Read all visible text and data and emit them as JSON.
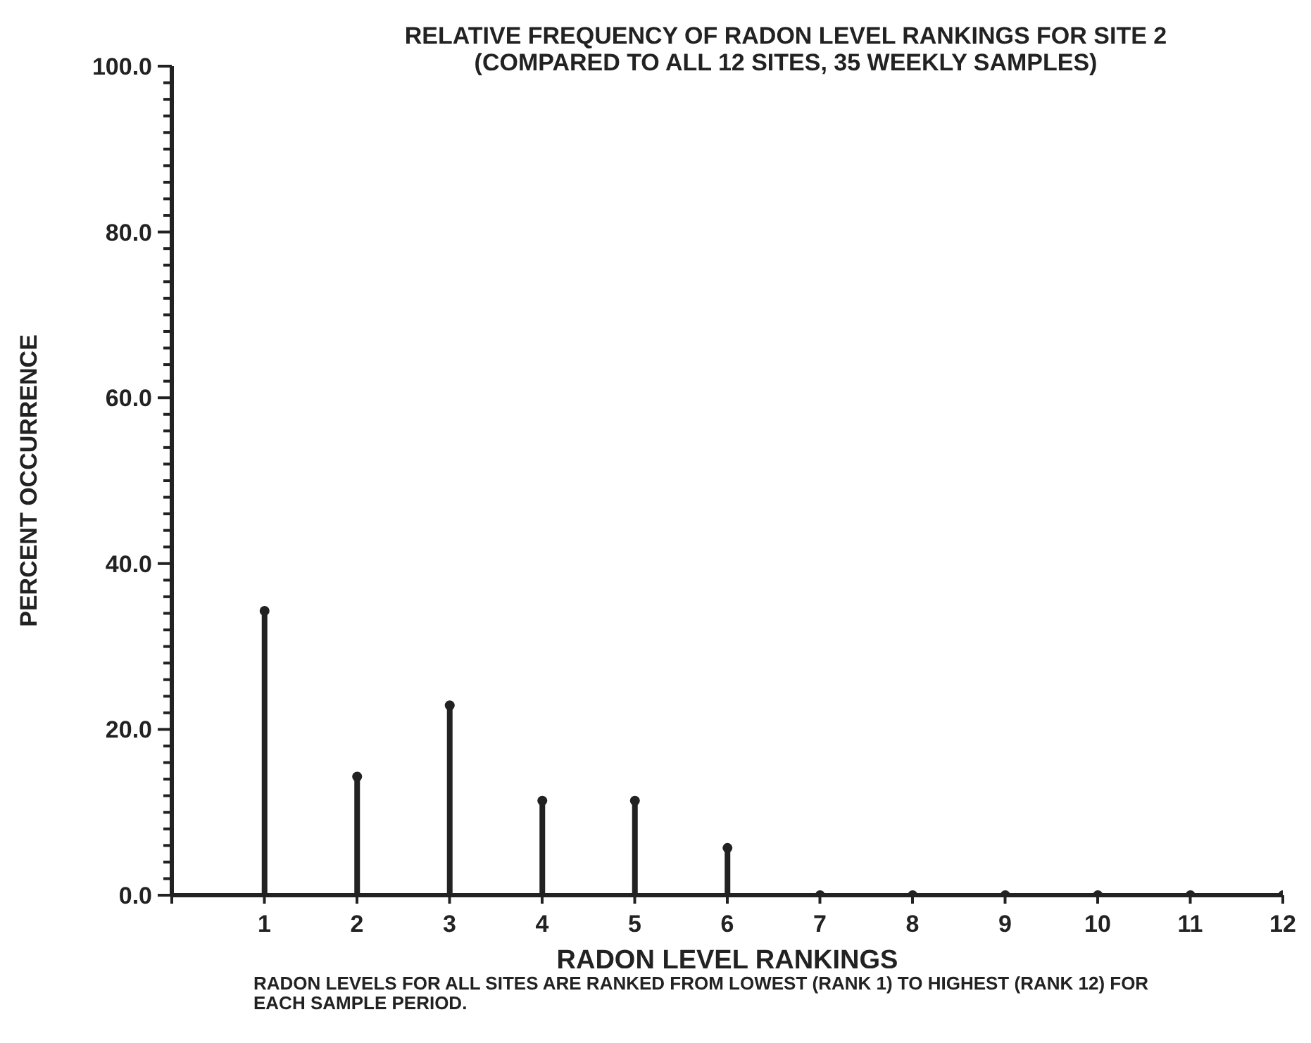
{
  "chart_data": {
    "type": "lollipop",
    "title": "RELATIVE FREQUENCY OF RADON LEVEL RANKINGS FOR SITE 2",
    "subtitle": "(COMPARED TO ALL 12 SITES, 35 WEEKLY SAMPLES)",
    "xlabel": "RADON LEVEL RANKINGS",
    "ylabel": "PERCENT OCCURRENCE",
    "annotations": [
      "RADON LEVELS FOR ALL SITES ARE RANKED FROM LOWEST (RANK 1) TO HIGHEST (RANK 12) FOR EACH SAMPLE PERIOD."
    ],
    "x": [
      1,
      2,
      3,
      4,
      5,
      6,
      7,
      8,
      9,
      10,
      11,
      12
    ],
    "values": [
      34.3,
      14.3,
      22.9,
      11.4,
      11.4,
      5.7,
      0,
      0,
      0,
      0,
      0,
      0
    ],
    "color": "#222222",
    "marker": "circle",
    "grid": false,
    "xlim": [
      0,
      12
    ],
    "xticks": [
      {
        "value": 0,
        "label": null
      },
      1,
      2,
      3,
      4,
      5,
      6,
      7,
      8,
      9,
      10,
      11,
      12
    ],
    "ylim": [
      0,
      100
    ],
    "yticks": [
      {
        "value": 0,
        "label": "0.0"
      },
      {
        "value": 2,
        "label": null
      },
      {
        "value": 4,
        "label": null
      },
      {
        "value": 6,
        "label": null
      },
      {
        "value": 8,
        "label": null
      },
      {
        "value": 10,
        "label": null
      },
      {
        "value": 12,
        "label": null
      },
      {
        "value": 14,
        "label": null
      },
      {
        "value": 16,
        "label": null
      },
      {
        "value": 18,
        "label": null
      },
      {
        "value": 20,
        "label": "20.0"
      },
      {
        "value": 22,
        "label": null
      },
      {
        "value": 24,
        "label": null
      },
      {
        "value": 26,
        "label": null
      },
      {
        "value": 28,
        "label": null
      },
      {
        "value": 30,
        "label": null
      },
      {
        "value": 32,
        "label": null
      },
      {
        "value": 34,
        "label": null
      },
      {
        "value": 36,
        "label": null
      },
      {
        "value": 38,
        "label": null
      },
      {
        "value": 40,
        "label": "40.0"
      },
      {
        "value": 42,
        "label": null
      },
      {
        "value": 44,
        "label": null
      },
      {
        "value": 46,
        "label": null
      },
      {
        "value": 48,
        "label": null
      },
      {
        "value": 50,
        "label": null
      },
      {
        "value": 52,
        "label": null
      },
      {
        "value": 54,
        "label": null
      },
      {
        "value": 56,
        "label": null
      },
      {
        "value": 58,
        "label": null
      },
      {
        "value": 60,
        "label": "60.0"
      },
      {
        "value": 62,
        "label": null
      },
      {
        "value": 64,
        "label": null
      },
      {
        "value": 66,
        "label": null
      },
      {
        "value": 68,
        "label": null
      },
      {
        "value": 70,
        "label": null
      },
      {
        "value": 72,
        "label": null
      },
      {
        "value": 74,
        "label": null
      },
      {
        "value": 76,
        "label": null
      },
      {
        "value": 78,
        "label": null
      },
      {
        "value": 80,
        "label": "80.0"
      },
      {
        "value": 82,
        "label": null
      },
      {
        "value": 84,
        "label": null
      },
      {
        "value": 86,
        "label": null
      },
      {
        "value": 88,
        "label": null
      },
      {
        "value": 90,
        "label": null
      },
      {
        "value": 92,
        "label": null
      },
      {
        "value": 94,
        "label": null
      },
      {
        "value": 96,
        "label": null
      },
      {
        "value": 98,
        "label": null
      },
      {
        "value": 100,
        "label": "100.0"
      }
    ]
  }
}
